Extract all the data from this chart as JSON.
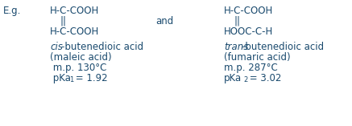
{
  "bg_color": "#ffffff",
  "text_color": "#1a4a6e",
  "eg_text": "E.g.",
  "and_text": "and",
  "struct1_line1": "H-C-COOH",
  "struct1_line2": "||",
  "struct1_line3": "H-C-COOH",
  "struct2_line1": "H-C-COOH",
  "struct2_line2": "||",
  "struct2_line3": "HOOC-C-H",
  "cis_italic": "cis",
  "cis_rest": "-butenedioic acid",
  "cis_line2": "(maleic acid)",
  "cis_line3": " m.p. 130°C",
  "cis_pka_prefix": " pKa",
  "cis_pka_sub": "1",
  "cis_pka_suffix": " = 1.92",
  "trans_italic": "trans",
  "trans_rest": "-butenedioic acid",
  "trans_line2": "(fumaric acid)",
  "trans_line3": "m.p. 287°C",
  "trans_pka_prefix": "pKa",
  "trans_pka_sub": "2",
  "trans_pka_suffix": " = 3.02",
  "figw": 4.37,
  "figh": 1.57,
  "dpi": 100
}
